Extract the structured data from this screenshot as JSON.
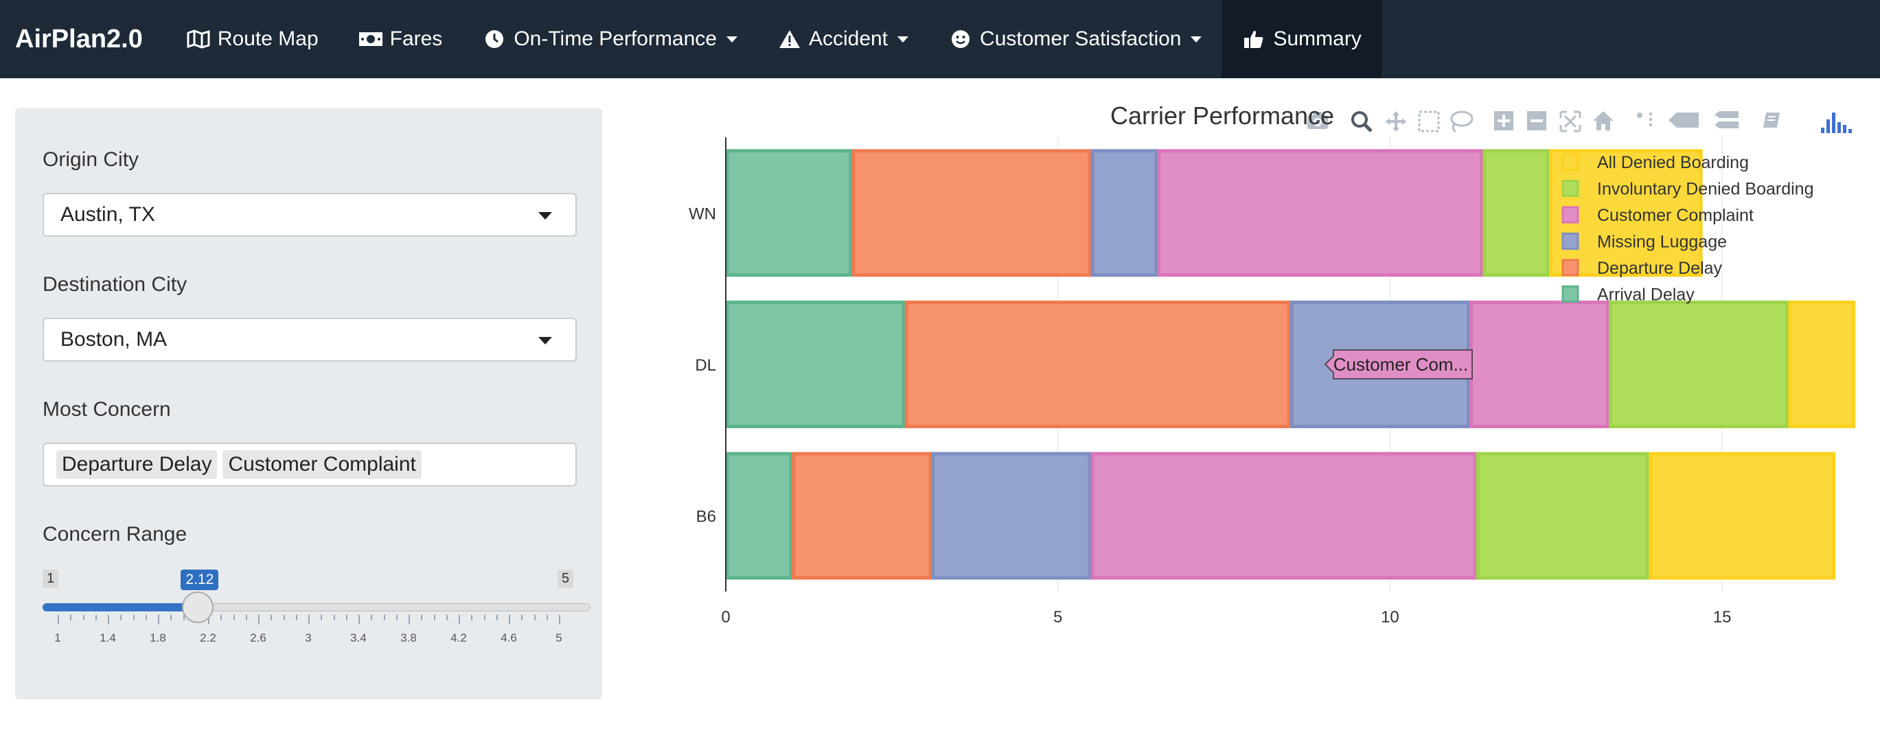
{
  "navbar": {
    "brand": "AirPlan2.0",
    "items": [
      {
        "label": "Route Map"
      },
      {
        "label": "Fares"
      },
      {
        "label": "On-Time Performance"
      },
      {
        "label": "Accident"
      },
      {
        "label": "Customer Satisfaction"
      },
      {
        "label": "Summary"
      }
    ]
  },
  "sidebar": {
    "origin_label": "Origin City",
    "origin_value": "Austin, TX",
    "destination_label": "Destination City",
    "destination_value": "Boston, MA",
    "concern_label": "Most Concern",
    "concern_chips": [
      "Departure Delay",
      "Customer Complaint"
    ],
    "range_label": "Concern Range",
    "range_min": "1",
    "range_max": "5",
    "range_value": "2.12",
    "range_fraction": 0.28,
    "tick_labels": [
      "1",
      "1.4",
      "1.8",
      "2.2",
      "2.6",
      "3",
      "3.4",
      "3.8",
      "4.2",
      "4.6",
      "5"
    ]
  },
  "tooltip": {
    "text": "Customer Com..."
  },
  "chart_data": {
    "type": "bar",
    "orientation": "horizontal",
    "stacked": true,
    "title": "Carrier Performance",
    "categories": [
      "WN",
      "DL",
      "B6"
    ],
    "xlim": [
      0,
      17.5
    ],
    "xticks": [
      "0",
      "5",
      "10",
      "15"
    ],
    "grid": true,
    "legend_position": "top-right",
    "series": [
      {
        "name": "Arrival Delay",
        "color": "#7fc6a6",
        "border": "#5cb48c",
        "values": [
          1.9,
          2.7,
          1.0
        ]
      },
      {
        "name": "Departure Delay",
        "color": "#f6926d",
        "border": "#f07a50",
        "values": [
          3.6,
          5.8,
          2.1
        ]
      },
      {
        "name": "Missing Luggage",
        "color": "#94a3cd",
        "border": "#7d8fc2",
        "values": [
          1.0,
          2.7,
          2.4
        ]
      },
      {
        "name": "Customer Complaint",
        "color": "#e08ec6",
        "border": "#d975b9",
        "values": [
          4.9,
          2.1,
          5.8
        ]
      },
      {
        "name": "Involuntary Denied Boarding",
        "color": "#addd5a",
        "border": "#9fd44a",
        "values": [
          1.0,
          2.7,
          2.6
        ]
      },
      {
        "name": "All Denied Boarding",
        "color": "#fcd93a",
        "border": "#fbd120",
        "values": [
          2.3,
          1.0,
          2.8
        ]
      }
    ]
  }
}
